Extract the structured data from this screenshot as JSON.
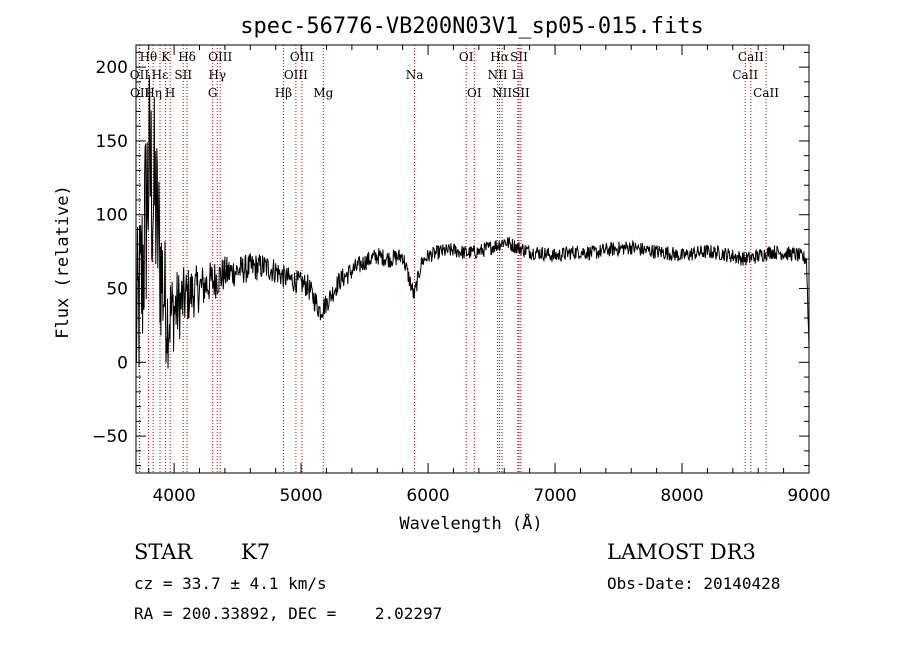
{
  "chart_data": {
    "type": "line",
    "title": "spec-56776-VB200N03V1_sp05-015.fits",
    "xlabel": "Wavelength (Å)",
    "ylabel": "Flux (relative)",
    "xlim": [
      3700,
      9000
    ],
    "ylim": [
      -75,
      215
    ],
    "xticks": [
      4000,
      5000,
      6000,
      7000,
      8000,
      9000
    ],
    "xtick_labels": [
      "4000",
      "5000",
      "6000",
      "7000",
      "8000",
      "9000"
    ],
    "yticks": [
      -50,
      0,
      50,
      100,
      150,
      200
    ],
    "ytick_labels": [
      "−50",
      "0",
      "50",
      "100",
      "150",
      "200"
    ],
    "spectrum_anchors": {
      "x": [
        3700,
        3750,
        3800,
        3850,
        3900,
        3950,
        4000,
        4100,
        4200,
        4300,
        4400,
        4500,
        4600,
        4700,
        4800,
        4860,
        4950,
        5050,
        5150,
        5200,
        5300,
        5400,
        5500,
        5600,
        5700,
        5800,
        5890,
        5950,
        6000,
        6100,
        6200,
        6300,
        6400,
        6500,
        6560,
        6600,
        6700,
        6800,
        6900,
        7000,
        7100,
        7200,
        7300,
        7400,
        7500,
        7600,
        7700,
        7800,
        7900,
        8000,
        8100,
        8200,
        8300,
        8400,
        8500,
        8600,
        8700,
        8800,
        8900,
        8980,
        9000
      ],
      "y": [
        20,
        60,
        130,
        110,
        60,
        30,
        35,
        45,
        50,
        55,
        60,
        62,
        64,
        65,
        62,
        58,
        55,
        52,
        35,
        40,
        55,
        62,
        68,
        72,
        70,
        72,
        45,
        68,
        72,
        75,
        76,
        74,
        75,
        78,
        80,
        82,
        78,
        75,
        74,
        72,
        74,
        75,
        74,
        76,
        77,
        78,
        76,
        75,
        74,
        72,
        74,
        75,
        74,
        72,
        70,
        72,
        75,
        74,
        73,
        70,
        10
      ],
      "noise_amplitude": [
        60,
        70,
        80,
        70,
        55,
        35,
        28,
        20,
        16,
        14,
        12,
        10,
        10,
        9,
        9,
        8,
        8,
        8,
        8,
        7,
        7,
        7,
        6,
        6,
        6,
        6,
        6,
        5,
        5,
        5,
        5,
        5,
        5,
        5,
        5,
        5,
        5,
        5,
        5,
        5,
        5,
        5,
        5,
        5,
        5,
        5,
        5,
        5,
        5,
        5,
        5,
        5,
        5,
        5,
        5,
        5,
        5,
        5,
        5,
        5,
        5
      ]
    },
    "spectral_lines": [
      {
        "name": "Hθ",
        "wavelength": 3798,
        "row": 0
      },
      {
        "name": "OII",
        "wavelength": 3727,
        "row": 1
      },
      {
        "name": "OII",
        "wavelength": 3729,
        "row": 2
      },
      {
        "name": "Hη",
        "wavelength": 3835,
        "row": 2
      },
      {
        "name": "Hε",
        "wavelength": 3889,
        "row": 1
      },
      {
        "name": "K",
        "wavelength": 3934,
        "row": 0
      },
      {
        "name": "H",
        "wavelength": 3969,
        "row": 2
      },
      {
        "name": "SII",
        "wavelength": 4072,
        "row": 1
      },
      {
        "name": "Hδ",
        "wavelength": 4102,
        "row": 0
      },
      {
        "name": "G",
        "wavelength": 4304,
        "row": 2
      },
      {
        "name": "Hγ",
        "wavelength": 4340,
        "row": 1
      },
      {
        "name": "OIII",
        "wavelength": 4363,
        "row": 0
      },
      {
        "name": "Hβ",
        "wavelength": 4861,
        "row": 2
      },
      {
        "name": "OIII",
        "wavelength": 4959,
        "row": 1
      },
      {
        "name": "OIII",
        "wavelength": 5007,
        "row": 0
      },
      {
        "name": "Mg",
        "wavelength": 5175,
        "row": 2
      },
      {
        "name": "Na",
        "wavelength": 5894,
        "row": 1
      },
      {
        "name": "OI",
        "wavelength": 6300,
        "row": 0
      },
      {
        "name": "OI",
        "wavelength": 6364,
        "row": 2
      },
      {
        "name": "NII",
        "wavelength": 6548,
        "row": 1
      },
      {
        "name": "Hα",
        "wavelength": 6563,
        "row": 0
      },
      {
        "name": "NII",
        "wavelength": 6583,
        "row": 2
      },
      {
        "name": "Li",
        "wavelength": 6707,
        "row": 1
      },
      {
        "name": "SII",
        "wavelength": 6716,
        "row": 0
      },
      {
        "name": "SII",
        "wavelength": 6731,
        "row": 2
      },
      {
        "name": "CaII",
        "wavelength": 8498,
        "row": 1
      },
      {
        "name": "CaII",
        "wavelength": 8542,
        "row": 0
      },
      {
        "name": "CaII",
        "wavelength": 8662,
        "row": 2
      }
    ]
  },
  "info": {
    "class": "STAR",
    "subclass": "K7",
    "survey": "LAMOST DR3",
    "cz": "cz = 33.7 ± 4.1 km/s",
    "obs_date": "Obs-Date: 20140428",
    "coords": "RA = 200.33892, DEC =    2.02297"
  },
  "colors": {
    "spectrum": "#000000",
    "line_markers": "#cc0000",
    "axes": "#000000",
    "background": "#ffffff"
  }
}
